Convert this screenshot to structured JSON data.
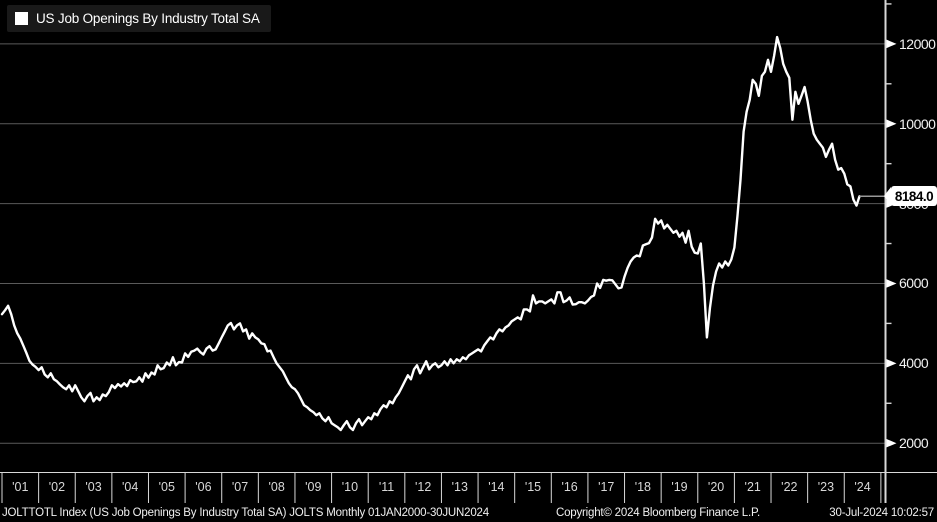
{
  "title": {
    "legend_label": "US Job Openings By Industry Total SA"
  },
  "last_value": {
    "label": "8184.0"
  },
  "footer": {
    "left": "JOLTTOTL Index (US Job Openings By Industry Total SA) JOLTS  Monthly 01JAN2000-30JUN2024",
    "copyright": "Copyright© 2024 Bloomberg Finance L.P.",
    "datetime": "30-Jul-2024 10:02:57"
  },
  "colors": {
    "background": "#000000",
    "line": "#ffffff",
    "grid": "#5a5a5a",
    "axis": "#d9d9d9",
    "tick_label": "#f2f2f2",
    "year_label": "#d8d8d8",
    "value_label_bg": "#ffffff",
    "value_label_text": "#000000",
    "leader_line": "#999999"
  },
  "chart_data": {
    "type": "line",
    "title": "US Job Openings By Industry Total SA",
    "security": "JOLTTOTL Index",
    "frequency": "Monthly",
    "date_range": "01JAN2000-30JUN2024",
    "x_start": {
      "year": 2001,
      "month": 1
    },
    "x_end": {
      "year": 2024,
      "month": 6
    },
    "x_tick_labels": [
      "'01",
      "'02",
      "'03",
      "'04",
      "'05",
      "'06",
      "'07",
      "'08",
      "'09",
      "'10",
      "'11",
      "'12",
      "'13",
      "'14",
      "'15",
      "'16",
      "'17",
      "'18",
      "'19",
      "'20",
      "'21",
      "'22",
      "'23",
      "'24"
    ],
    "y_ticks": [
      2000,
      4000,
      6000,
      8000,
      10000,
      12000
    ],
    "y_minor_ticks": [
      3000,
      5000,
      7000,
      9000,
      11000,
      13000
    ],
    "ylim": [
      1300,
      13100
    ],
    "legend_position": "top-left",
    "grid": "horizontal-only",
    "last_value": 8184.0,
    "series": [
      {
        "name": "US Job Openings By Industry Total SA",
        "units": "thousands, seasonally adjusted",
        "monthly_values": [
          5230,
          5330,
          5440,
          5230,
          4950,
          4750,
          4620,
          4440,
          4260,
          4060,
          3970,
          3910,
          3830,
          3900,
          3720,
          3650,
          3750,
          3600,
          3550,
          3470,
          3400,
          3350,
          3450,
          3300,
          3450,
          3300,
          3150,
          3050,
          3180,
          3260,
          3050,
          3150,
          3080,
          3220,
          3180,
          3280,
          3450,
          3380,
          3480,
          3420,
          3500,
          3430,
          3580,
          3530,
          3550,
          3650,
          3540,
          3750,
          3640,
          3770,
          3720,
          3950,
          3850,
          3880,
          4020,
          3950,
          4150,
          3950,
          4030,
          4020,
          4250,
          4160,
          4290,
          4320,
          4370,
          4280,
          4220,
          4370,
          4430,
          4320,
          4350,
          4500,
          4650,
          4800,
          4950,
          5010,
          4850,
          4950,
          5000,
          4800,
          4850,
          4620,
          4750,
          4650,
          4600,
          4500,
          4480,
          4300,
          4320,
          4150,
          4000,
          3900,
          3800,
          3650,
          3500,
          3400,
          3350,
          3250,
          3100,
          2950,
          2900,
          2830,
          2780,
          2700,
          2750,
          2620,
          2550,
          2650,
          2500,
          2450,
          2400,
          2330,
          2450,
          2550,
          2400,
          2330,
          2500,
          2600,
          2450,
          2550,
          2650,
          2600,
          2750,
          2700,
          2850,
          2950,
          2900,
          3050,
          3000,
          3150,
          3250,
          3400,
          3550,
          3700,
          3600,
          3850,
          3950,
          3750,
          3900,
          4050,
          3850,
          3950,
          4000,
          3900,
          3950,
          4050,
          3950,
          4100,
          4000,
          4100,
          4050,
          4150,
          4100,
          4200,
          4250,
          4300,
          4350,
          4300,
          4450,
          4550,
          4650,
          4600,
          4750,
          4850,
          4800,
          4900,
          4950,
          5050,
          5100,
          5150,
          5100,
          5350,
          5350,
          5300,
          5700,
          5500,
          5550,
          5550,
          5500,
          5550,
          5600,
          5500,
          5780,
          5780,
          5530,
          5570,
          5650,
          5470,
          5480,
          5530,
          5530,
          5500,
          5570,
          5660,
          5700,
          6000,
          5890,
          6090,
          6070,
          6090,
          6080,
          5980,
          5880,
          5900,
          6170,
          6390,
          6550,
          6650,
          6700,
          6680,
          6950,
          6980,
          7010,
          7150,
          7620,
          7500,
          7580,
          7380,
          7470,
          7370,
          7270,
          7320,
          7170,
          7270,
          7020,
          7320,
          6920,
          6770,
          6750,
          7000,
          6000,
          4650,
          5400,
          5950,
          6300,
          6500,
          6400,
          6550,
          6450,
          6600,
          6900,
          7700,
          8600,
          9800,
          10300,
          10600,
          11100,
          11000,
          10700,
          11200,
          11300,
          11600,
          11300,
          11700,
          12170,
          11900,
          11500,
          11300,
          11150,
          10100,
          10800,
          10500,
          10700,
          10920,
          10560,
          10100,
          9750,
          9600,
          9500,
          9400,
          9170,
          9350,
          9500,
          9100,
          8850,
          8890,
          8750,
          8480,
          8430,
          8100,
          7950,
          8184
        ]
      }
    ]
  }
}
